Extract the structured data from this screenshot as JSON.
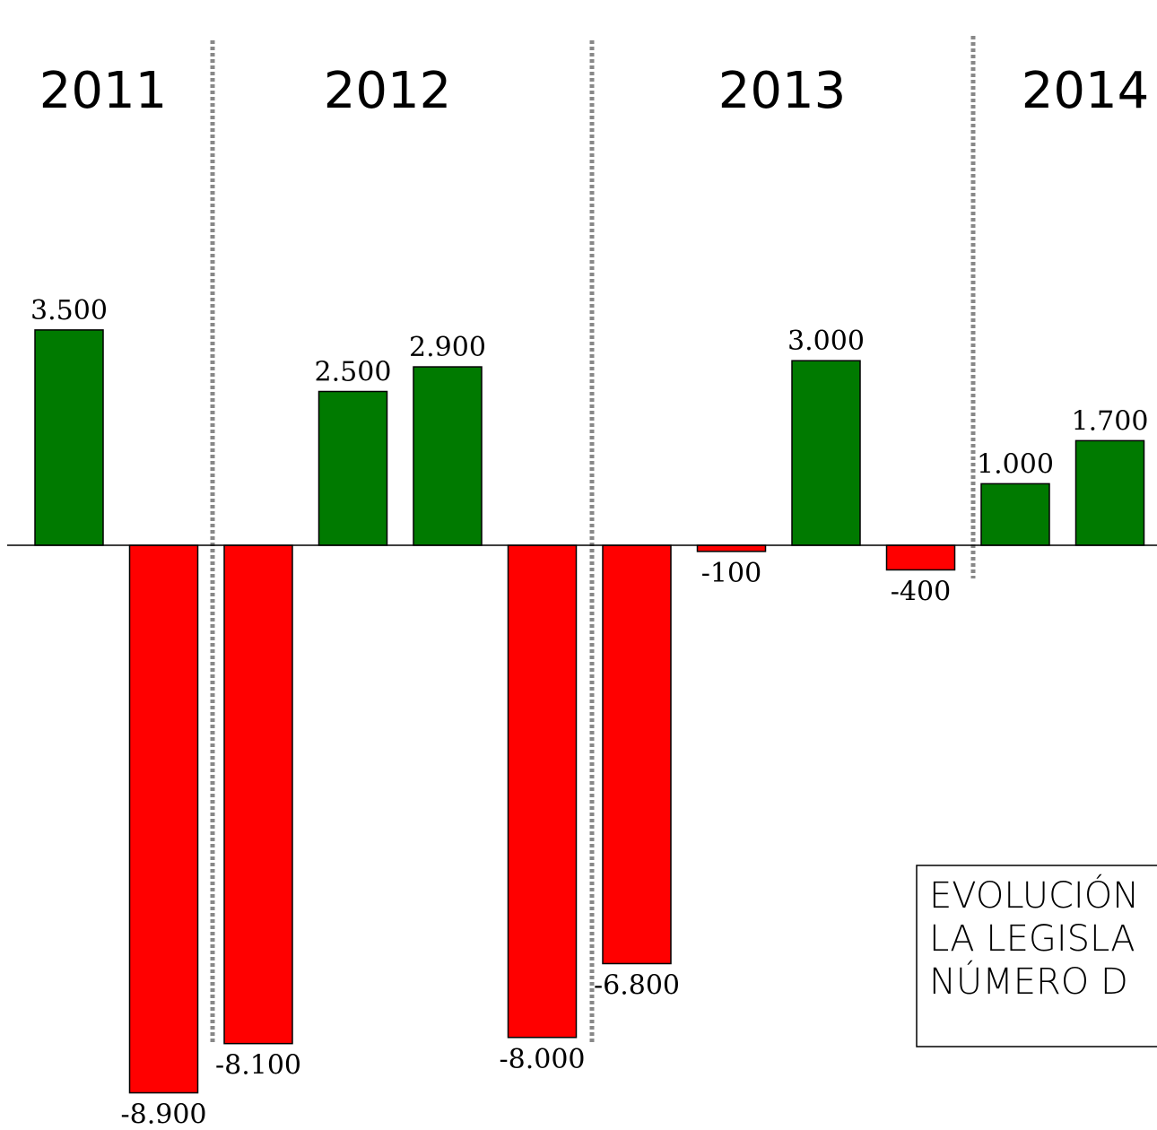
{
  "chart_data": {
    "type": "bar",
    "groups": [
      "2011",
      "2012",
      "2013",
      "2014"
    ],
    "values": [
      3500,
      -8900,
      -8100,
      2500,
      2900,
      -8000,
      -6800,
      -100,
      3000,
      -400,
      1000,
      1700
    ],
    "value_labels": [
      "3.500",
      "-8.900",
      "-8.100",
      "2.500",
      "2.900",
      "-8.000",
      "-6.800",
      "-100",
      "3.000",
      "-400",
      "1.000",
      "1.700"
    ],
    "positive_color": "#007a00",
    "negative_color": "#ff0000",
    "note": [
      "EVOLUCIÓN",
      "LA LEGISLA",
      "NÚMERO D"
    ]
  }
}
